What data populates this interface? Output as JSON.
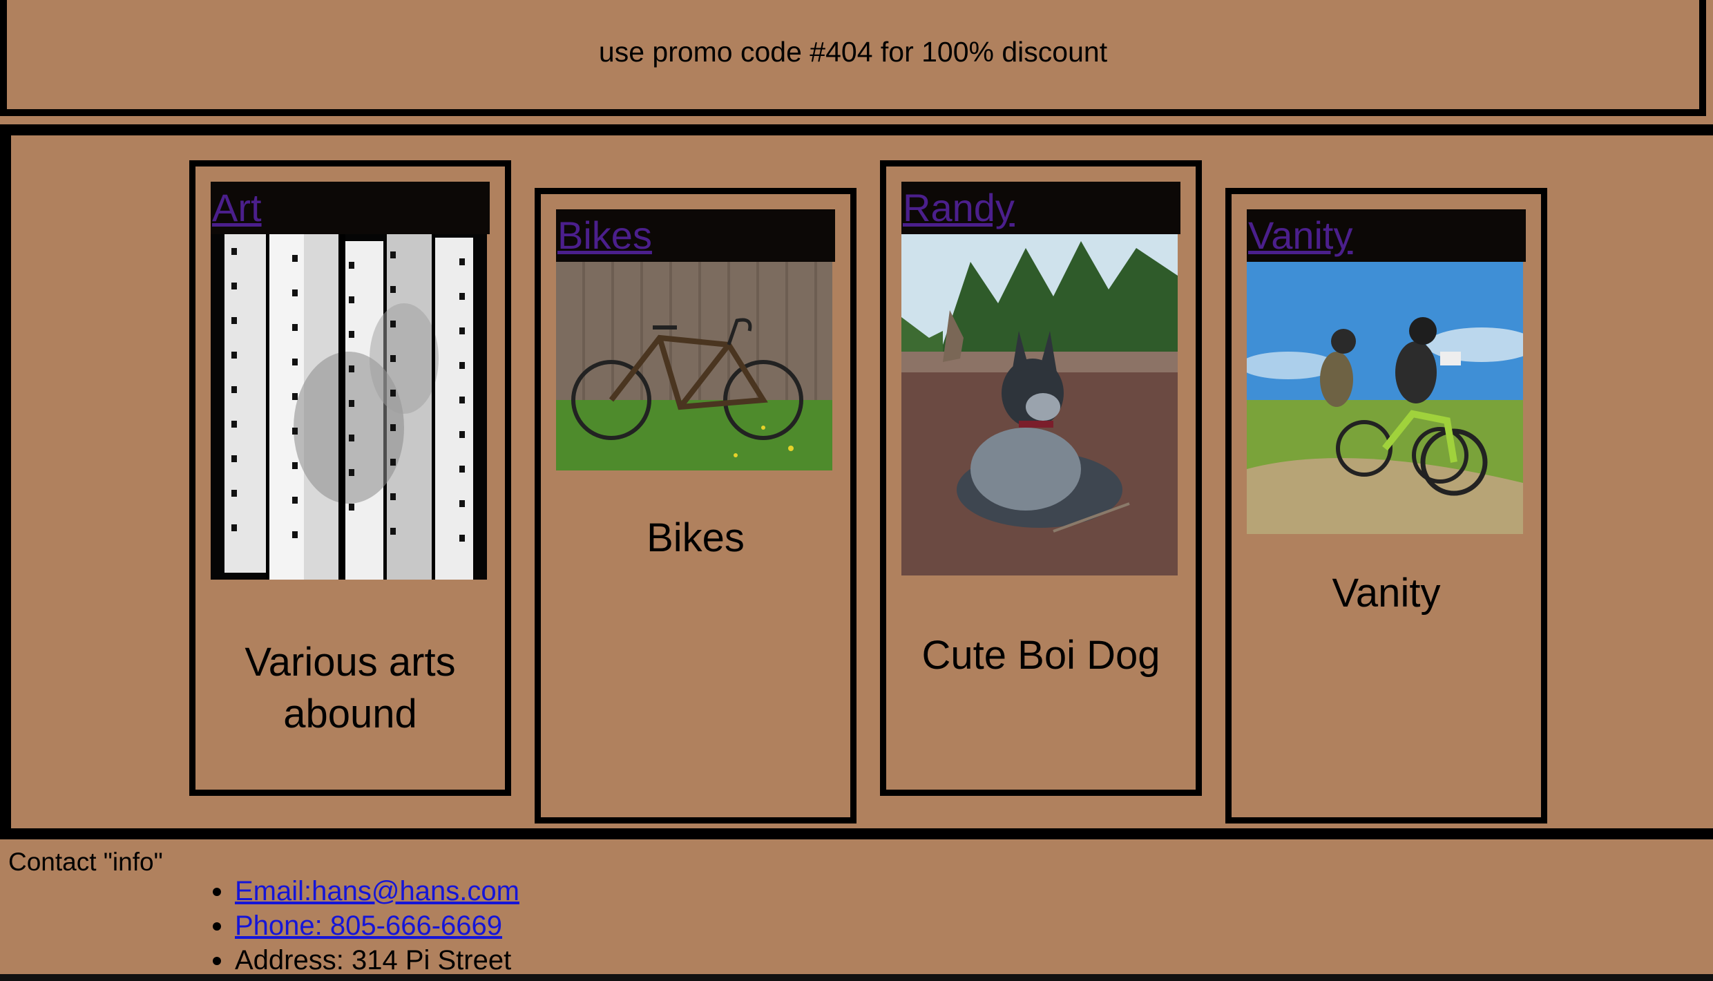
{
  "banner": {
    "text": "use promo code #404 for 100% discount"
  },
  "cards": [
    {
      "link": "Art",
      "caption": "Various arts abound",
      "image_alt": "film strips photo"
    },
    {
      "link": "Bikes",
      "caption": "Bikes",
      "image_alt": "bike leaning on fence"
    },
    {
      "link": "Randy",
      "caption": "Cute Boi Dog",
      "image_alt": "dog lying on dirt"
    },
    {
      "link": "Vanity",
      "caption": "Vanity",
      "image_alt": "mountain bikers riding"
    }
  ],
  "footer": {
    "title": "Contact \"info\"",
    "email": "Email:hans@hans.com",
    "phone": "Phone: 805-666-6669",
    "address": "Address: 314 Pi Street"
  },
  "colors": {
    "background": "#b0815e",
    "link_visited": "#4b1f8c",
    "link": "#1515d8",
    "card_header": "#0c0806"
  }
}
